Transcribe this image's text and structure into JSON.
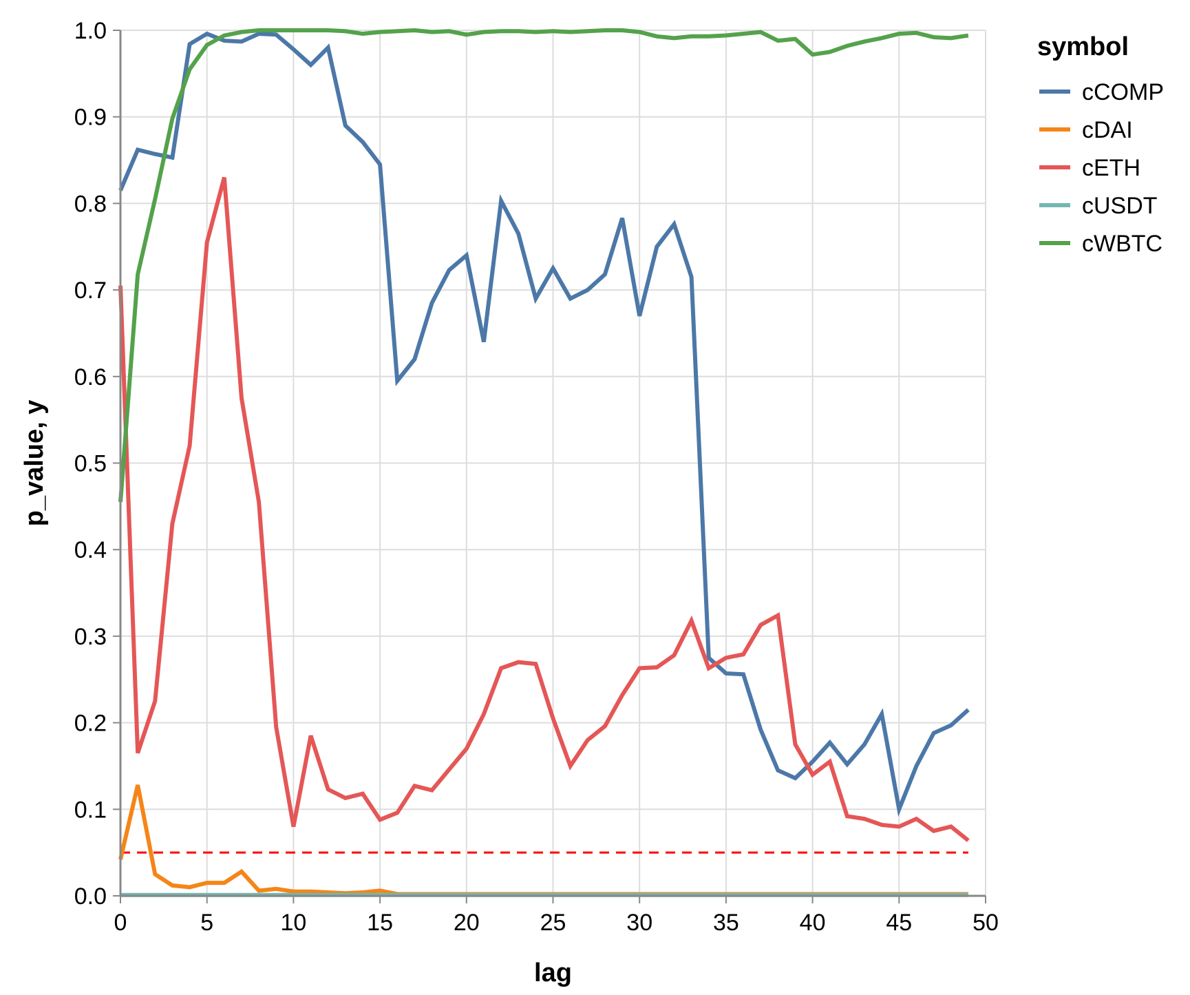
{
  "chart_data": {
    "type": "line",
    "title": "",
    "xlabel": "lag",
    "ylabel": "p_value, y",
    "xlim": [
      0,
      50
    ],
    "ylim": [
      0,
      1.0
    ],
    "x_ticks": [
      0,
      5,
      10,
      15,
      20,
      25,
      30,
      35,
      40,
      45,
      50
    ],
    "y_ticks": [
      "0.0",
      "0.1",
      "0.2",
      "0.3",
      "0.4",
      "0.5",
      "0.6",
      "0.7",
      "0.8",
      "0.9",
      "1.0"
    ],
    "grid": true,
    "legend_title": "symbol",
    "legend_position": "right",
    "threshold": {
      "value": 0.05,
      "color": "#ff0000",
      "style": "dashed"
    },
    "x": [
      0,
      1,
      2,
      3,
      4,
      5,
      6,
      7,
      8,
      9,
      10,
      11,
      12,
      13,
      14,
      15,
      16,
      17,
      18,
      19,
      20,
      21,
      22,
      23,
      24,
      25,
      26,
      27,
      28,
      29,
      30,
      31,
      32,
      33,
      34,
      35,
      36,
      37,
      38,
      39,
      40,
      41,
      42,
      43,
      44,
      45,
      46,
      47,
      48,
      49
    ],
    "series": [
      {
        "name": "cCOMP",
        "color": "#4c78a8",
        "values": [
          0.815,
          0.862,
          0.857,
          0.853,
          0.984,
          0.996,
          0.988,
          0.987,
          0.996,
          0.995,
          0.978,
          0.96,
          0.98,
          0.89,
          0.871,
          0.845,
          0.595,
          0.62,
          0.685,
          0.723,
          0.74,
          0.64,
          0.803,
          0.765,
          0.69,
          0.725,
          0.69,
          0.7,
          0.718,
          0.783,
          0.67,
          0.75,
          0.776,
          0.715,
          0.275,
          0.257,
          0.256,
          0.192,
          0.145,
          0.136,
          0.155,
          0.177,
          0.152,
          0.175,
          0.21,
          0.1,
          0.15,
          0.188,
          0.197,
          0.215
        ]
      },
      {
        "name": "cDAI",
        "color": "#f58518",
        "values": [
          0.042,
          0.128,
          0.025,
          0.012,
          0.01,
          0.015,
          0.015,
          0.028,
          0.006,
          0.008,
          0.005,
          0.005,
          0.004,
          0.003,
          0.004,
          0.006,
          0.002,
          0.002,
          0.002,
          0.002,
          0.002,
          0.002,
          0.002,
          0.002,
          0.002,
          0.002,
          0.002,
          0.002,
          0.002,
          0.002,
          0.002,
          0.002,
          0.002,
          0.002,
          0.002,
          0.002,
          0.002,
          0.002,
          0.002,
          0.002,
          0.002,
          0.002,
          0.002,
          0.002,
          0.002,
          0.002,
          0.002,
          0.002,
          0.002,
          0.002
        ]
      },
      {
        "name": "cETH",
        "color": "#e45756",
        "values": [
          0.705,
          0.165,
          0.225,
          0.43,
          0.52,
          0.755,
          0.83,
          0.575,
          0.455,
          0.195,
          0.08,
          0.185,
          0.123,
          0.113,
          0.118,
          0.088,
          0.096,
          0.127,
          0.122,
          0.146,
          0.17,
          0.21,
          0.263,
          0.27,
          0.268,
          0.205,
          0.15,
          0.18,
          0.196,
          0.232,
          0.263,
          0.264,
          0.278,
          0.318,
          0.263,
          0.275,
          0.279,
          0.313,
          0.324,
          0.175,
          0.14,
          0.155,
          0.092,
          0.089,
          0.082,
          0.08,
          0.089,
          0.075,
          0.08,
          0.064
        ]
      },
      {
        "name": "cUSDT",
        "color": "#72b7b2",
        "values": [
          0.001,
          0.001,
          0.001,
          0.001,
          0.001,
          0.001,
          0.001,
          0.001,
          0.001,
          0.001,
          0.001,
          0.001,
          0.001,
          0.001,
          0.001,
          0.001,
          0.001,
          0.001,
          0.001,
          0.001,
          0.001,
          0.001,
          0.001,
          0.001,
          0.001,
          0.001,
          0.001,
          0.001,
          0.001,
          0.001,
          0.001,
          0.001,
          0.001,
          0.001,
          0.001,
          0.001,
          0.001,
          0.001,
          0.001,
          0.001,
          0.001,
          0.001,
          0.001,
          0.001,
          0.001,
          0.001,
          0.001,
          0.001,
          0.001,
          0.001
        ]
      },
      {
        "name": "cWBTC",
        "color": "#54a24b",
        "values": [
          0.455,
          0.718,
          0.805,
          0.898,
          0.955,
          0.983,
          0.994,
          0.998,
          1.0,
          1.0,
          1.0,
          1.0,
          1.0,
          0.999,
          0.996,
          0.998,
          0.999,
          1.0,
          0.998,
          0.999,
          0.995,
          0.998,
          0.999,
          0.999,
          0.998,
          0.999,
          0.998,
          0.999,
          1.0,
          1.0,
          0.998,
          0.993,
          0.991,
          0.993,
          0.993,
          0.994,
          0.996,
          0.998,
          0.988,
          0.99,
          0.972,
          0.975,
          0.982,
          0.987,
          0.991,
          0.996,
          0.997,
          0.992,
          0.991,
          0.994
        ]
      }
    ]
  }
}
